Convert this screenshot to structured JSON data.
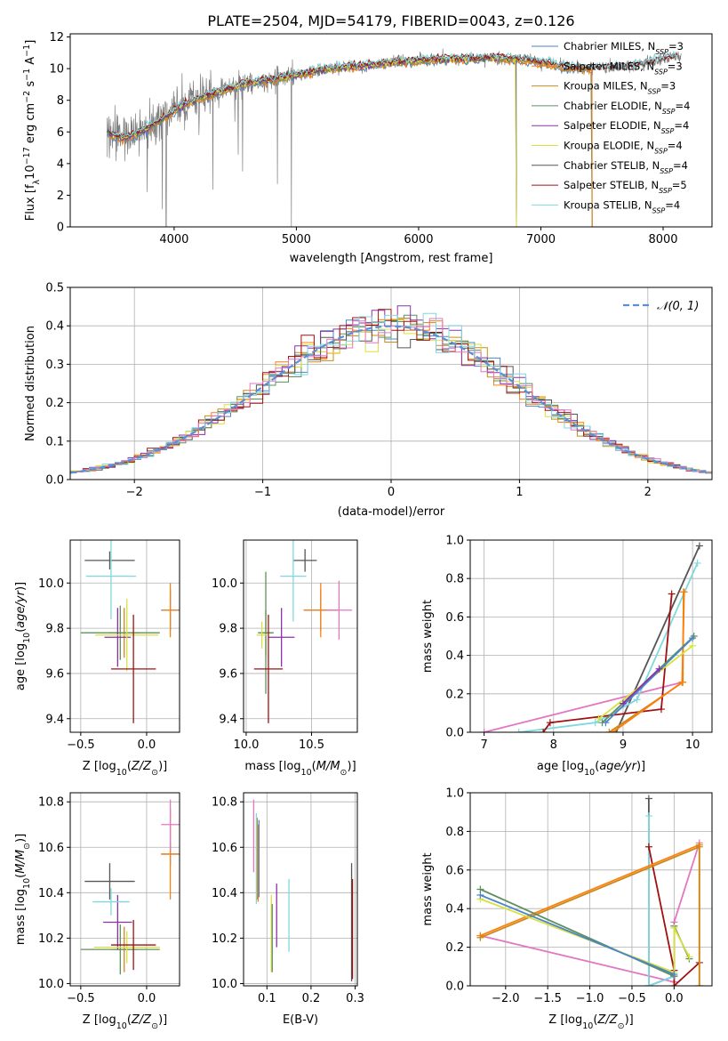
{
  "colors": {
    "Chabrier MILES": "#4a86c8",
    "Salpeter MILES": "#ff7f0e",
    "Kroupa MILES": "#c98a1a",
    "Chabrier ELODIE": "#5f8f5f",
    "Salpeter ELODIE": "#8b30a8",
    "Kroupa ELODIE": "#d8e040",
    "Chabrier STELIB": "#555555",
    "Salpeter STELIB": "#a01010",
    "Kroupa STELIB": "#7fd8e0",
    "extra": "#e377c2",
    "normal": "#5a8fd8"
  },
  "chart_data": [
    {
      "id": "spectrum",
      "type": "line",
      "title": "PLATE=2504, MJD=54179, FIBERID=0043, z=0.126",
      "xlabel": "wavelength [Angstrom, rest frame]",
      "ylabel": "Flux [f_λ 10^-17 erg cm^-2 s^-1 A^-1]",
      "xlim": [
        3150,
        8400
      ],
      "ylim": [
        0,
        12.2
      ],
      "xticks": [
        "4000",
        "5000",
        "6000",
        "7000",
        "8000"
      ],
      "yticks": [
        "0",
        "2",
        "4",
        "6",
        "8",
        "10",
        "12"
      ],
      "grid": false,
      "legend_position": "top-right",
      "legend": [
        {
          "name": "Chabrier MILES",
          "nssp": "3"
        },
        {
          "name": "Salpeter MILES",
          "nssp": "3"
        },
        {
          "name": "Kroupa MILES",
          "nssp": "3"
        },
        {
          "name": "Chabrier ELODIE",
          "nssp": "4"
        },
        {
          "name": "Salpeter ELODIE",
          "nssp": "4"
        },
        {
          "name": "Kroupa ELODIE",
          "nssp": "4"
        },
        {
          "name": "Chabrier STELIB",
          "nssp": "4"
        },
        {
          "name": "Salpeter STELIB",
          "nssp": "5"
        },
        {
          "name": "Kroupa STELIB",
          "nssp": "4"
        }
      ],
      "continuum": [
        [
          3450,
          5.9
        ],
        [
          3600,
          5.6
        ],
        [
          3750,
          6.1
        ],
        [
          3900,
          6.8
        ],
        [
          4050,
          7.6
        ],
        [
          4200,
          8.1
        ],
        [
          4400,
          8.6
        ],
        [
          4600,
          9.1
        ],
        [
          4800,
          9.3
        ],
        [
          5000,
          9.6
        ],
        [
          5200,
          9.9
        ],
        [
          5400,
          10.1
        ],
        [
          5600,
          10.2
        ],
        [
          5800,
          10.4
        ],
        [
          6000,
          10.5
        ],
        [
          6200,
          10.6
        ],
        [
          6400,
          10.6
        ],
        [
          6600,
          10.7
        ],
        [
          6800,
          10.6
        ],
        [
          7000,
          10.4
        ],
        [
          7200,
          10.1
        ],
        [
          7400,
          10.0
        ],
        [
          7600,
          10.1
        ],
        [
          7800,
          10.2
        ],
        [
          8000,
          10.6
        ],
        [
          8150,
          10.8
        ]
      ]
    },
    {
      "id": "residuals",
      "type": "line",
      "xlabel": "(data-model)/error",
      "ylabel": "Normed distribution",
      "xlim": [
        -2.5,
        2.5
      ],
      "ylim": [
        0,
        0.5
      ],
      "xticks": [
        "−2",
        "−1",
        "0",
        "1",
        "2"
      ],
      "yticks": [
        "0.0",
        "0.1",
        "0.2",
        "0.3",
        "0.4",
        "0.5"
      ],
      "grid": true,
      "legend_position": "top-right",
      "legend": [
        "𝒩(0, 1)"
      ],
      "bin_width": 0.1
    },
    {
      "id": "age-vs-z",
      "type": "scatter",
      "xlabel": "Z [log10(Z/Z⊙)]",
      "ylabel": "age [log10(age/yr)]",
      "xlim": [
        -0.58,
        0.25
      ],
      "ylim": [
        9.34,
        10.19
      ],
      "xticks": [
        "−0.5",
        "0.0"
      ],
      "yticks": [
        "9.4",
        "9.6",
        "9.8",
        "10.0"
      ],
      "grid": true,
      "points": [
        {
          "series": "Chabrier MILES",
          "x": 0.18,
          "y": 9.88,
          "xerr": 0.07,
          "yerr": 0.09
        },
        {
          "series": "Salpeter MILES",
          "x": 0.18,
          "y": 9.88,
          "xerr": 0.06,
          "yerr": 0.12
        },
        {
          "series": "Kroupa MILES",
          "x": -0.17,
          "y": 9.78,
          "xerr": 0.12,
          "yerr": 0.11
        },
        {
          "series": "Chabrier ELODIE",
          "x": -0.2,
          "y": 9.78,
          "xerr": 0.3,
          "yerr": 0.12
        },
        {
          "series": "Salpeter ELODIE",
          "x": -0.22,
          "y": 9.76,
          "xerr": 0.1,
          "yerr": 0.13
        },
        {
          "series": "Kroupa ELODIE",
          "x": -0.15,
          "y": 9.77,
          "xerr": 0.24,
          "yerr": 0.16
        },
        {
          "series": "Chabrier STELIB",
          "x": -0.28,
          "y": 10.1,
          "xerr": 0.19,
          "yerr": 0.04
        },
        {
          "series": "Salpeter STELIB",
          "x": -0.1,
          "y": 9.62,
          "xerr": 0.17,
          "yerr": 0.24
        },
        {
          "series": "Kroupa STELIB",
          "x": -0.27,
          "y": 10.03,
          "xerr": 0.19,
          "yerr": 0.19
        }
      ]
    },
    {
      "id": "age-vs-mass",
      "type": "scatter",
      "xlabel": "mass [log10(M/M⊙)]",
      "ylabel": "",
      "xlim": [
        9.98,
        10.85
      ],
      "ylim": [
        9.34,
        10.19
      ],
      "xticks": [
        "10.0",
        "10.5"
      ],
      "yticks": [
        "9.4",
        "9.6",
        "9.8",
        "10.0"
      ],
      "grid": true,
      "points": [
        {
          "series": "Chabrier MILES",
          "x": 10.57,
          "y": 9.88,
          "xerr": 0.13,
          "yerr": 0.09
        },
        {
          "series": "Salpeter MILES",
          "x": 10.57,
          "y": 9.88,
          "xerr": 0.13,
          "yerr": 0.12
        },
        {
          "series": "Kroupa MILES",
          "x": 10.15,
          "y": 9.78,
          "xerr": 0.05,
          "yerr": 0.1
        },
        {
          "series": "Chabrier ELODIE",
          "x": 10.15,
          "y": 9.78,
          "xerr": 0.06,
          "yerr": 0.27
        },
        {
          "series": "Salpeter ELODIE",
          "x": 10.27,
          "y": 9.76,
          "xerr": 0.1,
          "yerr": 0.13
        },
        {
          "series": "Kroupa ELODIE",
          "x": 10.12,
          "y": 9.77,
          "xerr": 0.04,
          "yerr": 0.06
        },
        {
          "series": "Chabrier STELIB",
          "x": 10.45,
          "y": 10.1,
          "xerr": 0.09,
          "yerr": 0.05
        },
        {
          "series": "Salpeter STELIB",
          "x": 10.17,
          "y": 9.62,
          "xerr": 0.11,
          "yerr": 0.24
        },
        {
          "series": "Kroupa STELIB",
          "x": 10.36,
          "y": 10.03,
          "xerr": 0.1,
          "yerr": 0.2
        },
        {
          "series": "extra",
          "x": 10.71,
          "y": 9.88,
          "xerr": 0.1,
          "yerr": 0.13
        }
      ]
    },
    {
      "id": "weight-vs-age",
      "type": "line",
      "xlabel": "age [log10(age/yr)]",
      "ylabel": "mass weight",
      "xlim": [
        6.8,
        10.28
      ],
      "ylim": [
        0,
        1.0
      ],
      "xticks": [
        "7",
        "8",
        "9",
        "10"
      ],
      "yticks": [
        "0.0",
        "0.2",
        "0.4",
        "0.6",
        "0.8",
        "1.0"
      ],
      "grid": true,
      "series": [
        {
          "name": "extra",
          "points": [
            [
              7.0,
              0.0
            ],
            [
              9.85,
              0.26
            ]
          ]
        },
        {
          "name": "Chabrier STELIB",
          "points": [
            [
              8.9,
              0.0
            ],
            [
              10.1,
              0.97
            ]
          ]
        },
        {
          "name": "Kroupa STELIB",
          "points": [
            [
              7.5,
              0.0
            ],
            [
              8.6,
              0.05
            ],
            [
              9.2,
              0.17
            ],
            [
              10.07,
              0.88
            ]
          ]
        },
        {
          "name": "Salpeter STELIB",
          "points": [
            [
              7.85,
              0.0
            ],
            [
              7.95,
              0.05
            ],
            [
              9.55,
              0.12
            ],
            [
              9.7,
              0.72
            ]
          ]
        },
        {
          "name": "Kroupa MILES",
          "points": [
            [
              8.8,
              0.0
            ],
            [
              9.86,
              0.26
            ],
            [
              9.87,
              0.73
            ]
          ]
        },
        {
          "name": "Salpeter MILES",
          "points": [
            [
              8.85,
              0.0
            ],
            [
              9.85,
              0.26
            ],
            [
              9.88,
              0.73
            ]
          ]
        },
        {
          "name": "Chabrier ELODIE",
          "points": [
            [
              8.7,
              0.05
            ],
            [
              10.02,
              0.5
            ]
          ]
        },
        {
          "name": "Kroupa ELODIE",
          "points": [
            [
              8.65,
              0.07
            ],
            [
              10.0,
              0.45
            ]
          ]
        },
        {
          "name": "Chabrier MILES",
          "points": [
            [
              8.75,
              0.05
            ],
            [
              10.0,
              0.49
            ]
          ]
        },
        {
          "name": "Salpeter ELODIE",
          "points": [
            [
              9.0,
              0.15
            ],
            [
              9.52,
              0.33
            ]
          ]
        }
      ]
    },
    {
      "id": "mass-vs-z",
      "type": "scatter",
      "xlabel": "Z [log10(Z/Z⊙)]",
      "ylabel": "mass [log10(M/M⊙)]",
      "xlim": [
        -0.58,
        0.25
      ],
      "ylim": [
        9.99,
        10.84
      ],
      "xticks": [
        "−0.5",
        "0.0"
      ],
      "yticks": [
        "10.0",
        "10.2",
        "10.4",
        "10.6",
        "10.8"
      ],
      "grid": true,
      "points": [
        {
          "series": "Chabrier MILES",
          "x": 0.18,
          "y": 10.57,
          "xerr": 0.07,
          "yerr": 0.05
        },
        {
          "series": "Salpeter MILES",
          "x": 0.18,
          "y": 10.57,
          "xerr": 0.07,
          "yerr": 0.2
        },
        {
          "series": "Kroupa MILES",
          "x": -0.17,
          "y": 10.15,
          "xerr": 0.1,
          "yerr": 0.1
        },
        {
          "series": "Chabrier ELODIE",
          "x": -0.2,
          "y": 10.15,
          "xerr": 0.3,
          "yerr": 0.11
        },
        {
          "series": "Salpeter ELODIE",
          "x": -0.22,
          "y": 10.27,
          "xerr": 0.11,
          "yerr": 0.12
        },
        {
          "series": "Kroupa ELODIE",
          "x": -0.15,
          "y": 10.16,
          "xerr": 0.25,
          "yerr": 0.07
        },
        {
          "series": "Chabrier STELIB",
          "x": -0.28,
          "y": 10.45,
          "xerr": 0.19,
          "yerr": 0.08
        },
        {
          "series": "Salpeter STELIB",
          "x": -0.1,
          "y": 10.17,
          "xerr": 0.17,
          "yerr": 0.11
        },
        {
          "series": "Kroupa STELIB",
          "x": -0.27,
          "y": 10.36,
          "xerr": 0.14,
          "yerr": 0.06
        },
        {
          "series": "extra",
          "x": 0.18,
          "y": 10.7,
          "xerr": 0.07,
          "yerr": 0.11
        }
      ]
    },
    {
      "id": "mass-vs-ebv",
      "type": "scatter",
      "xlabel": "E(B-V)",
      "ylabel": "",
      "xlim": [
        0.047,
        0.305
      ],
      "ylim": [
        9.99,
        10.84
      ],
      "xticks": [
        "0.1",
        "0.2",
        "0.3"
      ],
      "yticks": [
        "10.0",
        "10.2",
        "10.4",
        "10.6",
        "10.8"
      ],
      "grid": true,
      "points": [
        {
          "series": "extra",
          "x": 0.07,
          "y": 10.65,
          "xerr": 0,
          "yerr": 0.16
        },
        {
          "series": "Kroupa MILES",
          "x": 0.078,
          "y": 10.55,
          "xerr": 0,
          "yerr": 0.18
        },
        {
          "series": "Kroupa STELIB",
          "x": 0.076,
          "y": 10.55,
          "xerr": 0,
          "yerr": 0.2
        },
        {
          "series": "Salpeter MILES",
          "x": 0.08,
          "y": 10.53,
          "xerr": 0,
          "yerr": 0.17
        },
        {
          "series": "Chabrier MILES",
          "x": 0.082,
          "y": 10.55,
          "xerr": 0,
          "yerr": 0.17
        },
        {
          "series": "Kroupa ELODIE",
          "x": 0.11,
          "y": 10.22,
          "xerr": 0,
          "yerr": 0.17
        },
        {
          "series": "Chabrier ELODIE",
          "x": 0.112,
          "y": 10.2,
          "xerr": 0,
          "yerr": 0.15
        },
        {
          "series": "Salpeter ELODIE",
          "x": 0.122,
          "y": 10.3,
          "xerr": 0,
          "yerr": 0.14
        },
        {
          "series": "Kroupa STELIB",
          "x": 0.15,
          "y": 10.3,
          "xerr": 0,
          "yerr": 0.16
        },
        {
          "series": "Chabrier STELIB",
          "x": 0.292,
          "y": 10.27,
          "xerr": 0,
          "yerr": 0.26
        },
        {
          "series": "Salpeter STELIB",
          "x": 0.294,
          "y": 10.24,
          "xerr": 0,
          "yerr": 0.22
        }
      ]
    },
    {
      "id": "weight-vs-z",
      "type": "line",
      "xlabel": "Z [log10(Z/Z⊙)]",
      "ylabel": "mass weight",
      "xlim": [
        -2.42,
        0.45
      ],
      "ylim": [
        0,
        1.0
      ],
      "xticks": [
        "−2.0",
        "−1.5",
        "−1.0",
        "−0.5",
        "0.0"
      ],
      "yticks": [
        "0.0",
        "0.2",
        "0.4",
        "0.6",
        "0.8",
        "1.0"
      ],
      "grid": true,
      "series": [
        {
          "name": "extra",
          "points": [
            [
              -2.3,
              0.26
            ],
            [
              0.0,
              0.02
            ],
            [
              0.0,
              0.33
            ],
            [
              0.3,
              0.74
            ]
          ]
        },
        {
          "name": "Chabrier STELIB",
          "points": [
            [
              -0.3,
              0.97
            ],
            [
              -0.3,
              0.0
            ],
            [
              0.0,
              0.05
            ]
          ]
        },
        {
          "name": "Kroupa STELIB",
          "points": [
            [
              -0.3,
              0.88
            ],
            [
              -0.3,
              0.0
            ],
            [
              0.0,
              0.05
            ]
          ]
        },
        {
          "name": "Salpeter STELIB",
          "points": [
            [
              -0.3,
              0.72
            ],
            [
              0.0,
              0.08
            ],
            [
              0.0,
              0.0
            ],
            [
              0.3,
              0.12
            ]
          ]
        },
        {
          "name": "Salpeter MILES",
          "points": [
            [
              -2.3,
              0.26
            ],
            [
              0.3,
              0.73
            ],
            [
              0.3,
              0.0
            ]
          ]
        },
        {
          "name": "Kroupa MILES",
          "points": [
            [
              -2.3,
              0.25
            ],
            [
              0.3,
              0.72
            ],
            [
              0.3,
              0.0
            ]
          ]
        },
        {
          "name": "Chabrier ELODIE",
          "points": [
            [
              -2.3,
              0.5
            ],
            [
              0.0,
              0.05
            ],
            [
              0.0,
              0.31
            ],
            [
              0.18,
              0.14
            ]
          ]
        },
        {
          "name": "Kroupa ELODIE",
          "points": [
            [
              -2.3,
              0.45
            ],
            [
              0.0,
              0.07
            ],
            [
              0.0,
              0.3
            ],
            [
              0.18,
              0.15
            ]
          ]
        },
        {
          "name": "Chabrier MILES",
          "points": [
            [
              -2.3,
              0.47
            ],
            [
              0.0,
              0.06
            ]
          ]
        }
      ]
    }
  ]
}
